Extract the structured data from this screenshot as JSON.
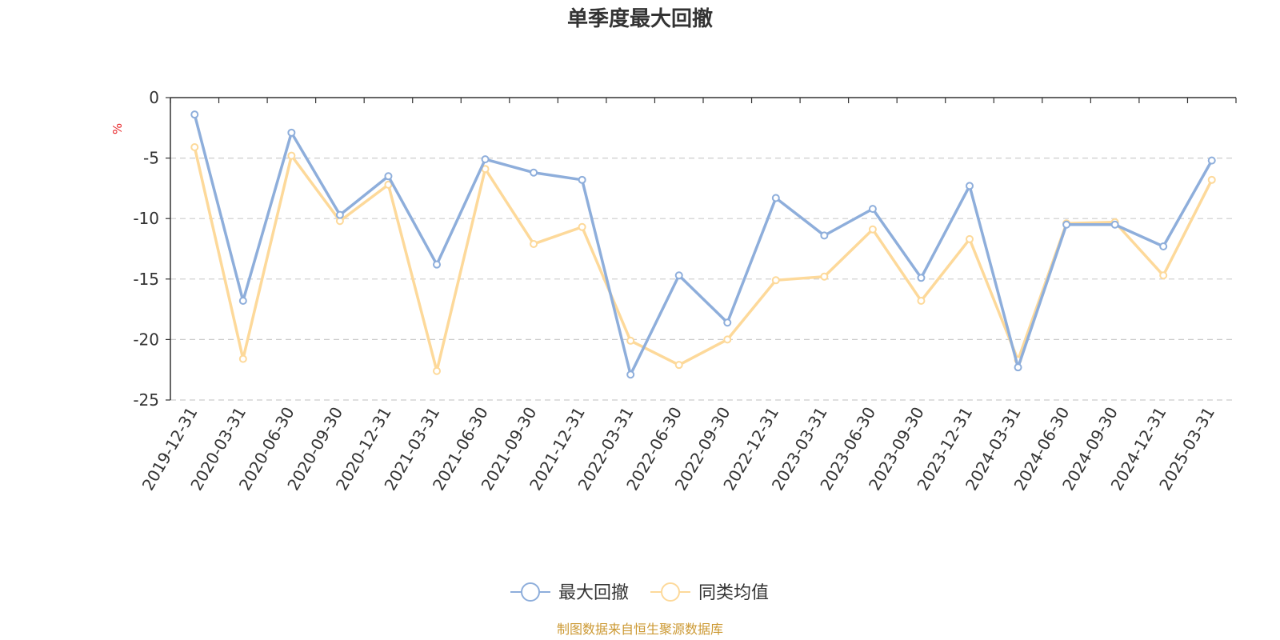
{
  "chart_data": {
    "type": "line",
    "title": "单季度最大回撤",
    "ylabel": "%",
    "ylim": [
      -25,
      0
    ],
    "yticks": [
      0,
      -5,
      -10,
      -15,
      -20,
      -25
    ],
    "ytick_labels": [
      "0",
      "-5",
      "-10",
      "-15",
      "-20",
      "-25"
    ],
    "grid": true,
    "legend_position": "bottom-center",
    "categories": [
      "2019-12-31",
      "2020-03-31",
      "2020-06-30",
      "2020-09-30",
      "2020-12-31",
      "2021-03-31",
      "2021-06-30",
      "2021-09-30",
      "2021-12-31",
      "2022-03-31",
      "2022-06-30",
      "2022-09-30",
      "2022-12-31",
      "2023-03-31",
      "2023-06-30",
      "2023-09-30",
      "2023-12-31",
      "2024-03-31",
      "2024-06-30",
      "2024-09-30",
      "2024-12-31",
      "2025-03-31"
    ],
    "series": [
      {
        "name": "最大回撤",
        "color": "#8eaedb",
        "values": [
          -1.4,
          -16.8,
          -2.9,
          -9.7,
          -6.5,
          -13.8,
          -5.1,
          -6.2,
          -6.8,
          -22.9,
          -14.7,
          -18.6,
          -8.3,
          -11.4,
          -9.2,
          -14.9,
          -7.3,
          -22.3,
          -10.5,
          -10.5,
          -12.3,
          -5.2
        ]
      },
      {
        "name": "同类均值",
        "color": "#fdd99a",
        "values": [
          -4.1,
          -21.6,
          -4.8,
          -10.2,
          -7.2,
          -22.6,
          -5.9,
          -12.1,
          -10.7,
          -20.1,
          -22.1,
          -20.0,
          -15.1,
          -14.8,
          -10.9,
          -16.8,
          -11.7,
          -21.7,
          -10.4,
          -10.3,
          -14.7,
          -6.8
        ]
      }
    ]
  },
  "footer": {
    "source": "制图数据来自恒生聚源数据库"
  },
  "colors": {
    "unit_label": "#e8262a",
    "source_text": "#cc9933",
    "axis": "#333333",
    "grid": "#cccccc"
  }
}
